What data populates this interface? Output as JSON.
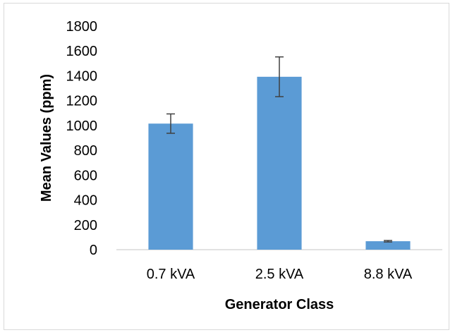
{
  "chart_data": {
    "type": "bar",
    "categories": [
      "0.7 kVA",
      "2.5 kVA",
      "8.8 kVA"
    ],
    "values": [
      1015,
      1392,
      68
    ],
    "error": [
      78,
      160,
      6
    ],
    "xlabel": "Generator Class",
    "ylabel": "Mean Values (ppm)",
    "ylim": [
      0,
      1800
    ],
    "yticks": [
      "0",
      "200",
      "400",
      "600",
      "800",
      "1000",
      "1200",
      "1400",
      "1600",
      "1800"
    ],
    "grid": false,
    "legend": "none",
    "bar_color": "#5b9bd5",
    "error_color": "#404040",
    "axis_color": "#d9d9d9"
  }
}
